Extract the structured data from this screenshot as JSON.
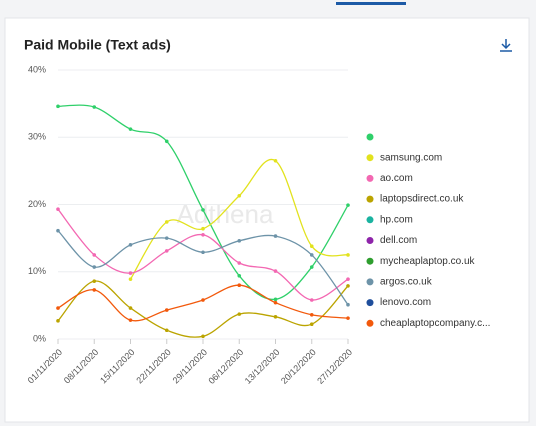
{
  "chart_data": {
    "type": "line",
    "title": "Paid Mobile (Text ads)",
    "watermark": "Adthena",
    "categories": [
      "01/11/2020",
      "08/11/2020",
      "15/11/2020",
      "22/11/2020",
      "29/11/2020",
      "06/12/2020",
      "13/12/2020",
      "20/12/2020",
      "27/12/2020"
    ],
    "ylim": [
      0,
      40
    ],
    "yticks": [
      {
        "value": 0,
        "label": "0%"
      },
      {
        "value": 10,
        "label": "10%"
      },
      {
        "value": 20,
        "label": "20%"
      },
      {
        "value": 30,
        "label": "30%"
      },
      {
        "value": 40,
        "label": "40%"
      }
    ],
    "grid": true,
    "legend": "right",
    "series": [
      {
        "name": null,
        "color": "#2fd06a",
        "visible": true,
        "values": [
          34.6,
          34.5,
          31.2,
          29.4,
          19.2,
          9.4,
          5.9,
          10.7,
          19.9
        ]
      },
      {
        "name": "samsung.com",
        "color": "#e2e21e",
        "visible": true,
        "values": [
          null,
          null,
          8.9,
          17.4,
          16.4,
          21.3,
          26.5,
          13.8,
          12.5
        ]
      },
      {
        "name": "ao.com",
        "color": "#f368b2",
        "visible": true,
        "values": [
          19.3,
          12.5,
          9.8,
          13.1,
          15.5,
          11.3,
          10.1,
          5.8,
          8.9
        ]
      },
      {
        "name": "laptopsdirect.co.uk",
        "color": "#bba400",
        "visible": true,
        "values": [
          2.7,
          8.6,
          4.6,
          1.3,
          0.4,
          3.7,
          3.3,
          2.2,
          7.9
        ]
      },
      {
        "name": "hp.com",
        "color": "#1ab3a0",
        "visible": false,
        "values": [
          null,
          null,
          null,
          null,
          null,
          null,
          null,
          null,
          null
        ]
      },
      {
        "name": "dell.com",
        "color": "#8e24aa",
        "visible": false,
        "values": [
          null,
          null,
          null,
          null,
          null,
          null,
          null,
          null,
          null
        ]
      },
      {
        "name": "mycheaplaptop.co.uk",
        "color": "#2e9e2e",
        "visible": false,
        "values": [
          null,
          null,
          null,
          null,
          null,
          null,
          null,
          null,
          null
        ]
      },
      {
        "name": "argos.co.uk",
        "color": "#6d93a8",
        "visible": true,
        "values": [
          16.1,
          10.7,
          14.0,
          15.0,
          12.9,
          14.6,
          15.3,
          12.5,
          5.1
        ]
      },
      {
        "name": "lenovo.com",
        "color": "#1f4e9c",
        "visible": false,
        "values": [
          null,
          null,
          null,
          null,
          null,
          null,
          null,
          null,
          null
        ]
      },
      {
        "name": "cheaplaptopcompany.c...",
        "color": "#f2590c",
        "visible": true,
        "values": [
          4.6,
          7.3,
          2.8,
          4.3,
          5.8,
          8.0,
          5.4,
          3.6,
          3.1
        ]
      }
    ]
  }
}
